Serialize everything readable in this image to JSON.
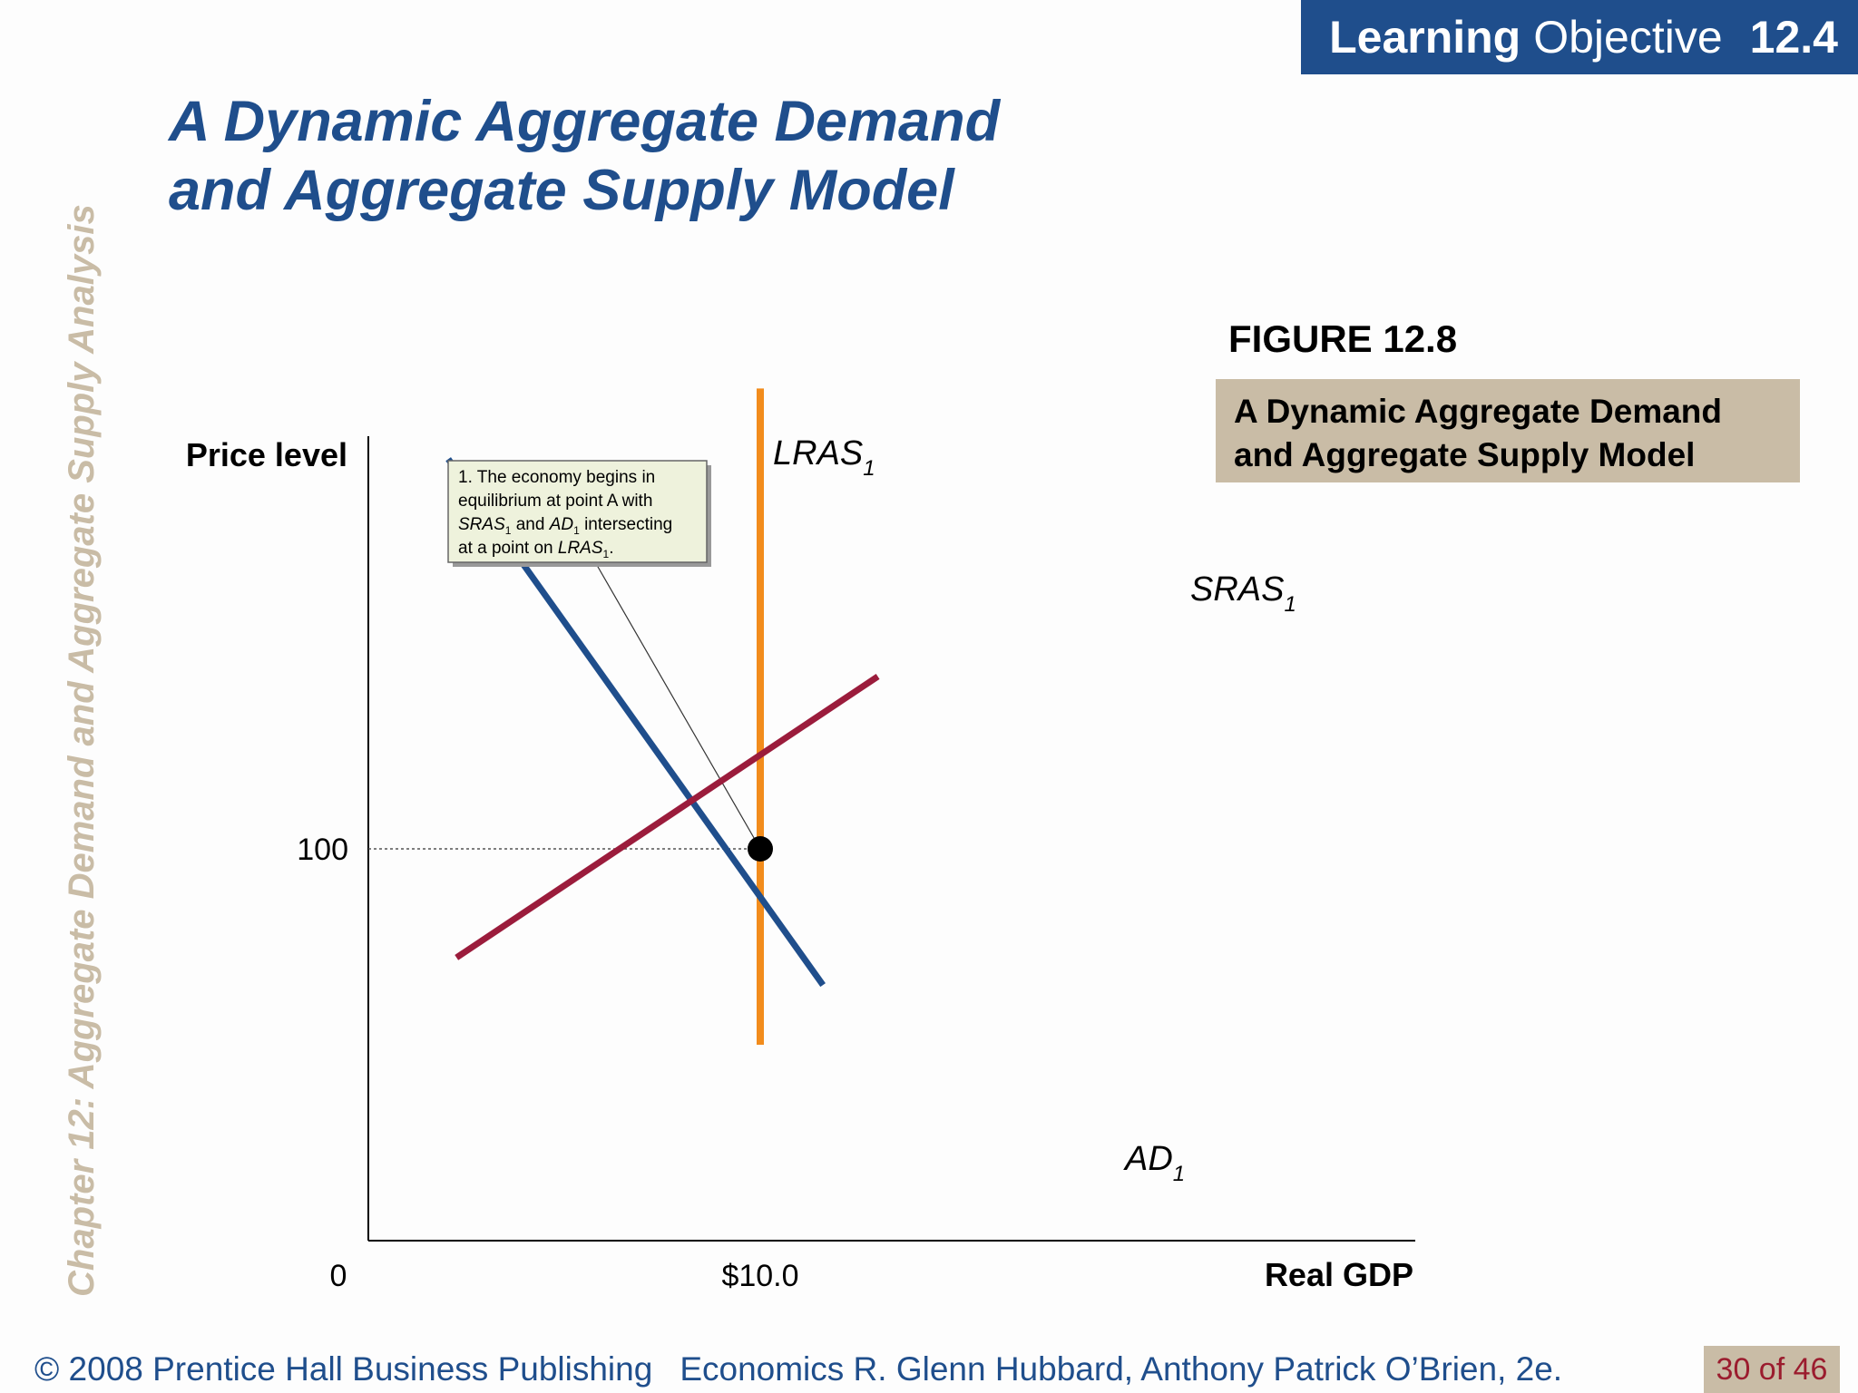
{
  "banner": {
    "bold": "Learning",
    "normal": "Objective",
    "number": "12.4"
  },
  "title": {
    "line1": "A Dynamic Aggregate Demand",
    "line2": "and Aggregate Supply Model"
  },
  "side_text": "Chapter 12:  Aggregate Demand and Aggregate Supply Analysis",
  "figure": {
    "label": "FIGURE 12.8",
    "caption_line1": "A Dynamic Aggregate Demand",
    "caption_line2": "and Aggregate Supply Model"
  },
  "footer": {
    "copyright": "© 2008 Prentice Hall Business Publishing",
    "book": "Economics  R. Glenn Hubbard, Anthony Patrick O’Brien, 2e.",
    "page": "30 of 46"
  },
  "colors": {
    "ad": "#1f4e8c",
    "sras": "#9b1c3c",
    "lras": "#f28c1c",
    "accent": "#1f4e8c",
    "tan": "#c9bca6"
  },
  "chart_data": {
    "type": "line",
    "xlabel": "Real GDP",
    "ylabel": "Price level",
    "x_ticks": [
      "0",
      "$10.0"
    ],
    "y_ticks": [
      "100"
    ],
    "series": [
      {
        "name": "AD",
        "sub": "1",
        "points": [
          [
            2.04,
            139.8
          ],
          [
            11.6,
            86.1
          ]
        ]
      },
      {
        "name": "SRAS",
        "sub": "1",
        "points": [
          [
            2.25,
            88.9
          ],
          [
            13.0,
            117.6
          ]
        ]
      },
      {
        "name": "LRAS",
        "sub": "1",
        "points": [
          [
            10.0,
            80
          ],
          [
            10.0,
            147
          ]
        ]
      }
    ],
    "equilibrium": {
      "x": 10.0,
      "y": 100
    },
    "annotation": {
      "line1": "1.  The economy begins in",
      "line2": "equilibrium at point A with",
      "line3_a": "SRAS",
      "line3_sub1": "1",
      "line3_b": " and ",
      "line3_c": "AD",
      "line3_sub2": "1",
      "line3_d": " intersecting",
      "line4_a": "at a point on ",
      "line4_b": "LRAS",
      "line4_sub": "1",
      "line4_c": "."
    }
  }
}
